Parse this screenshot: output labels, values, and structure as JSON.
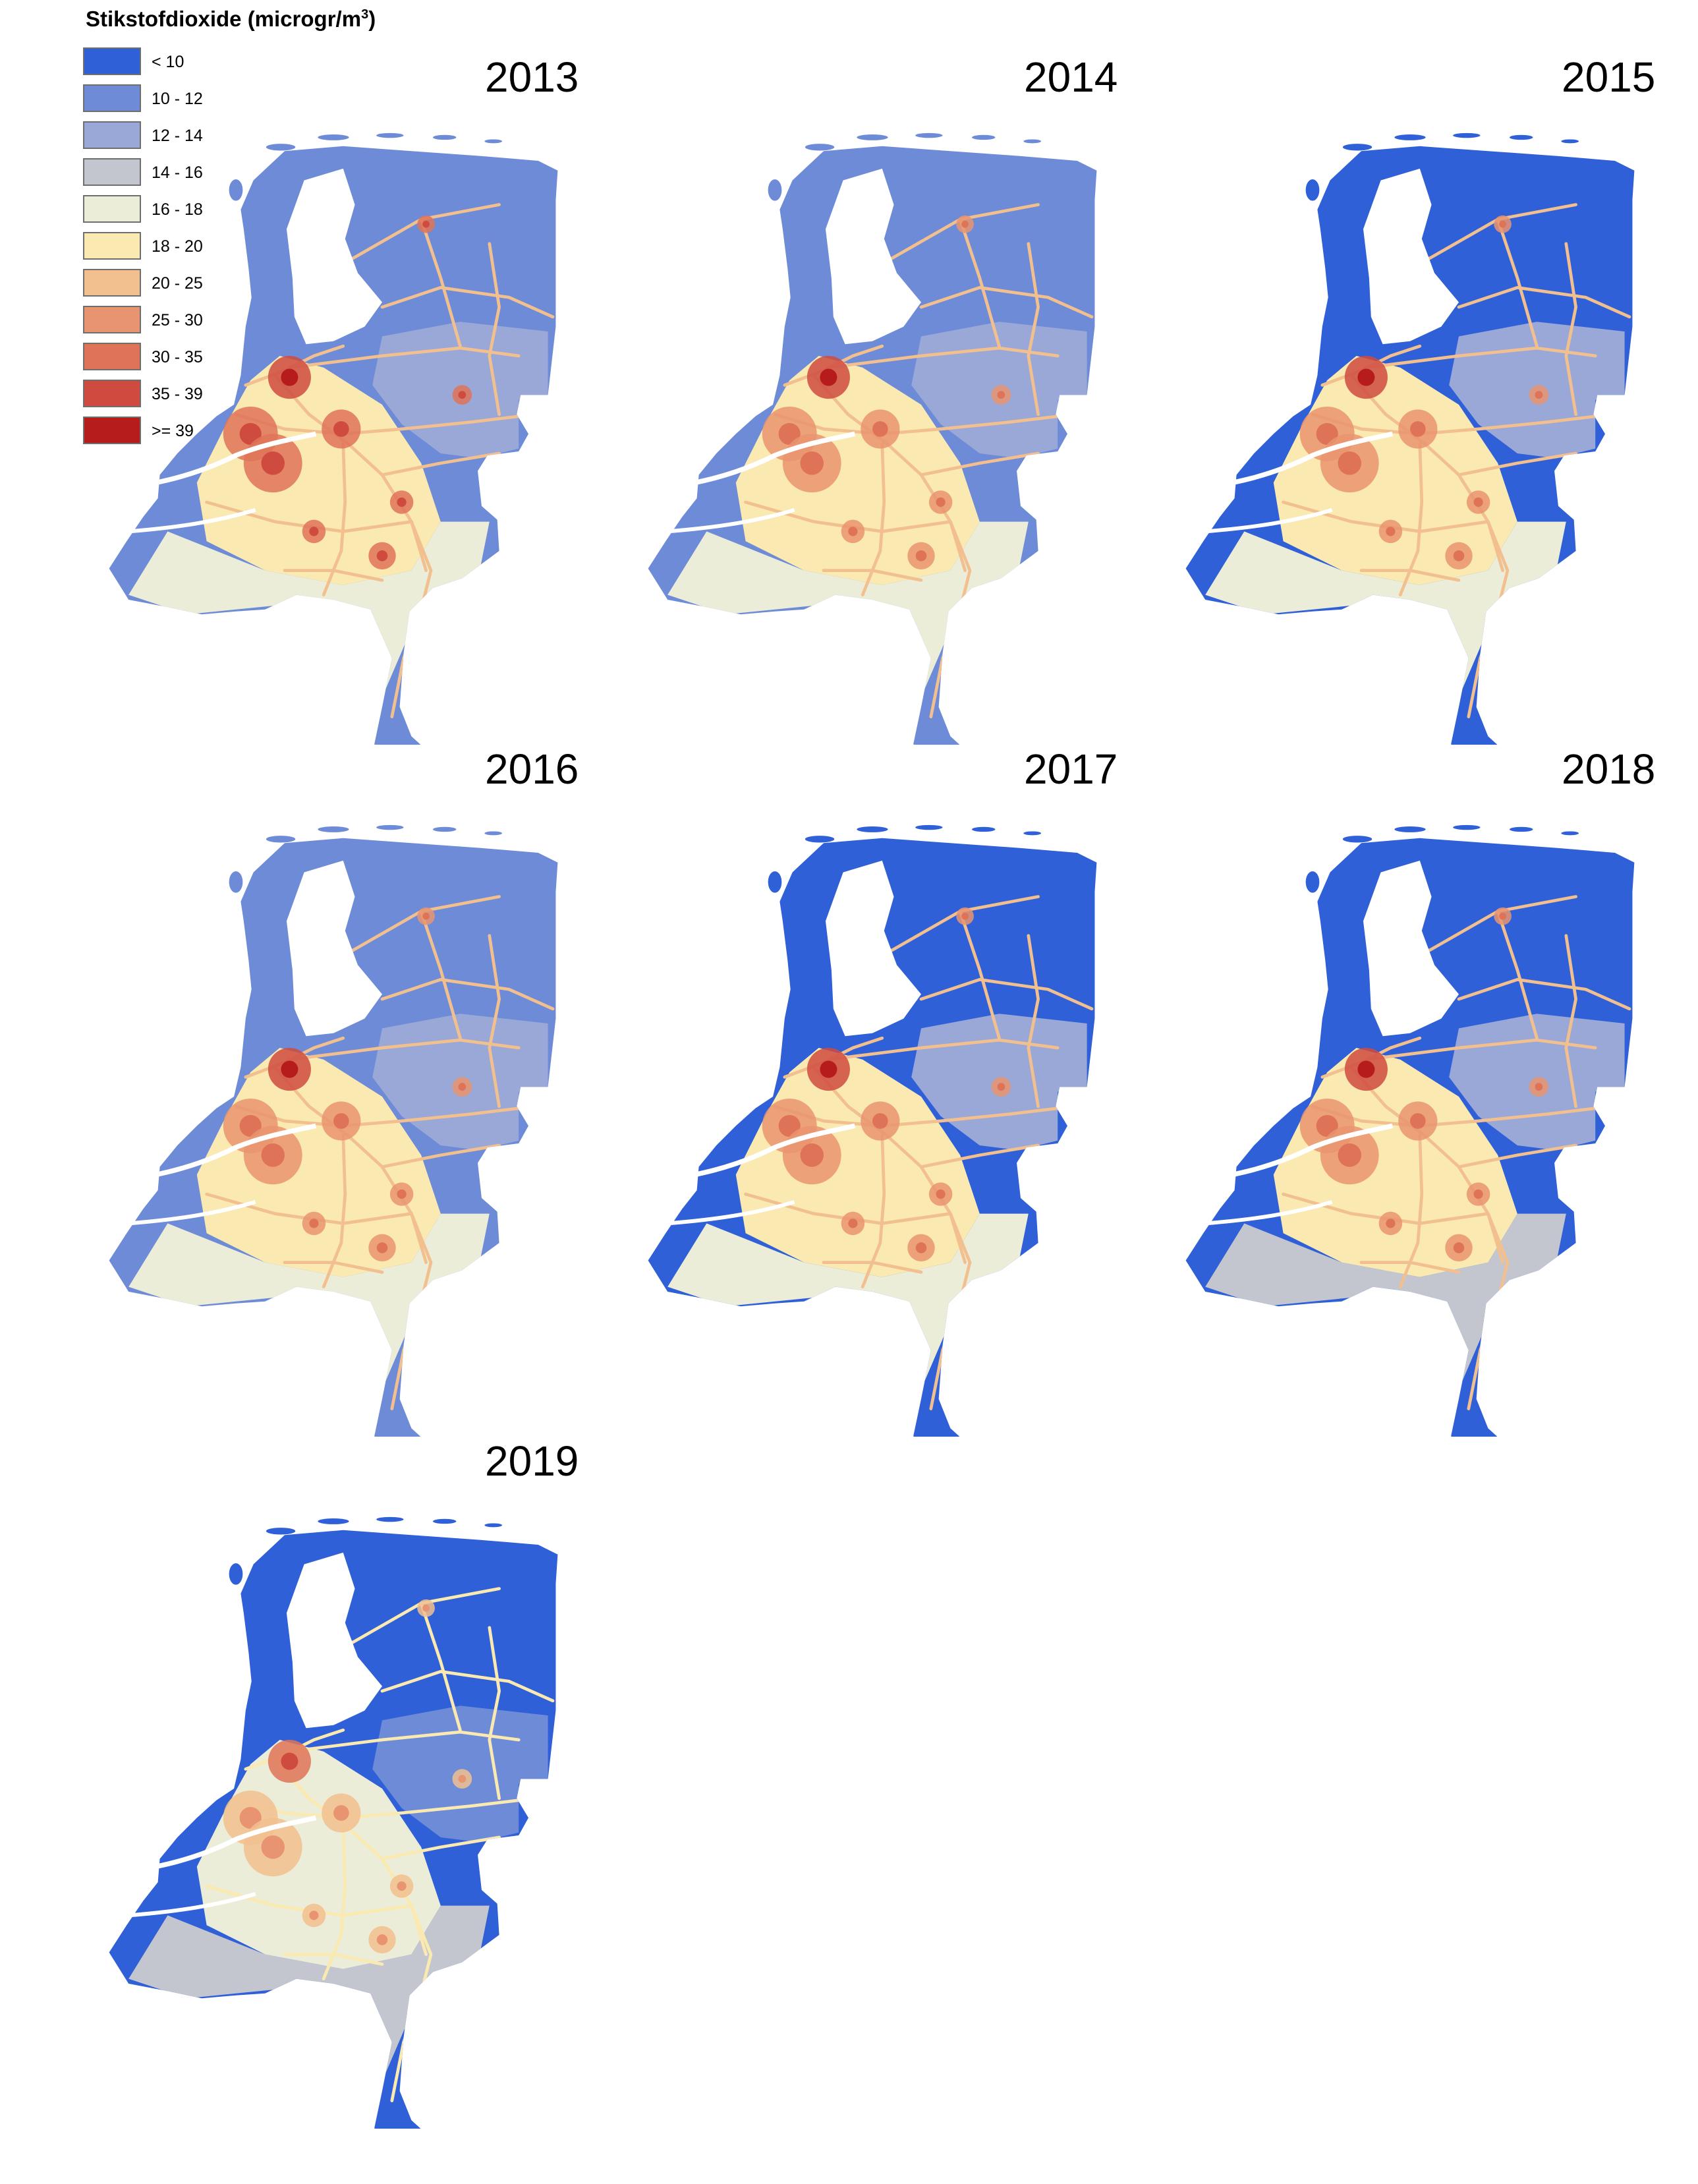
{
  "legend": {
    "title": "Stikstofdioxide (microgr/m",
    "title_superscript": "3",
    "title_suffix": ")",
    "classes": [
      {
        "label": "< 10",
        "color": "#2f60d8"
      },
      {
        "label": "10 - 12",
        "color": "#6e8bd8"
      },
      {
        "label": "12 - 14",
        "color": "#9aa8d8"
      },
      {
        "label": "14 - 16",
        "color": "#c3c6cf"
      },
      {
        "label": "16 - 18",
        "color": "#ecedd8"
      },
      {
        "label": "18 - 20",
        "color": "#fae9b0"
      },
      {
        "label": "20 - 25",
        "color": "#f2bf8f"
      },
      {
        "label": "25 - 30",
        "color": "#e99470"
      },
      {
        "label": "30 - 35",
        "color": "#df7358"
      },
      {
        "label": "35 - 39",
        "color": "#cf4b40"
      },
      {
        "label": ">= 39",
        "color": "#b61c1c"
      }
    ]
  },
  "maps": [
    {
      "year": "2013",
      "north_class": 1,
      "east_class": 2,
      "south_class": 4,
      "rand_class": 5,
      "city_class": 8,
      "hotspot_class": 9
    },
    {
      "year": "2014",
      "north_class": 1,
      "east_class": 2,
      "south_class": 4,
      "rand_class": 5,
      "city_class": 7,
      "hotspot_class": 9
    },
    {
      "year": "2015",
      "north_class": 0,
      "east_class": 2,
      "south_class": 4,
      "rand_class": 5,
      "city_class": 7,
      "hotspot_class": 9
    },
    {
      "year": "2016",
      "north_class": 1,
      "east_class": 2,
      "south_class": 4,
      "rand_class": 5,
      "city_class": 7,
      "hotspot_class": 9
    },
    {
      "year": "2017",
      "north_class": 0,
      "east_class": 2,
      "south_class": 4,
      "rand_class": 5,
      "city_class": 7,
      "hotspot_class": 9
    },
    {
      "year": "2018",
      "north_class": 0,
      "east_class": 2,
      "south_class": 3,
      "rand_class": 5,
      "city_class": 7,
      "hotspot_class": 9
    },
    {
      "year": "2019",
      "north_class": 0,
      "east_class": 1,
      "south_class": 3,
      "rand_class": 4,
      "city_class": 6,
      "hotspot_class": 8
    }
  ]
}
